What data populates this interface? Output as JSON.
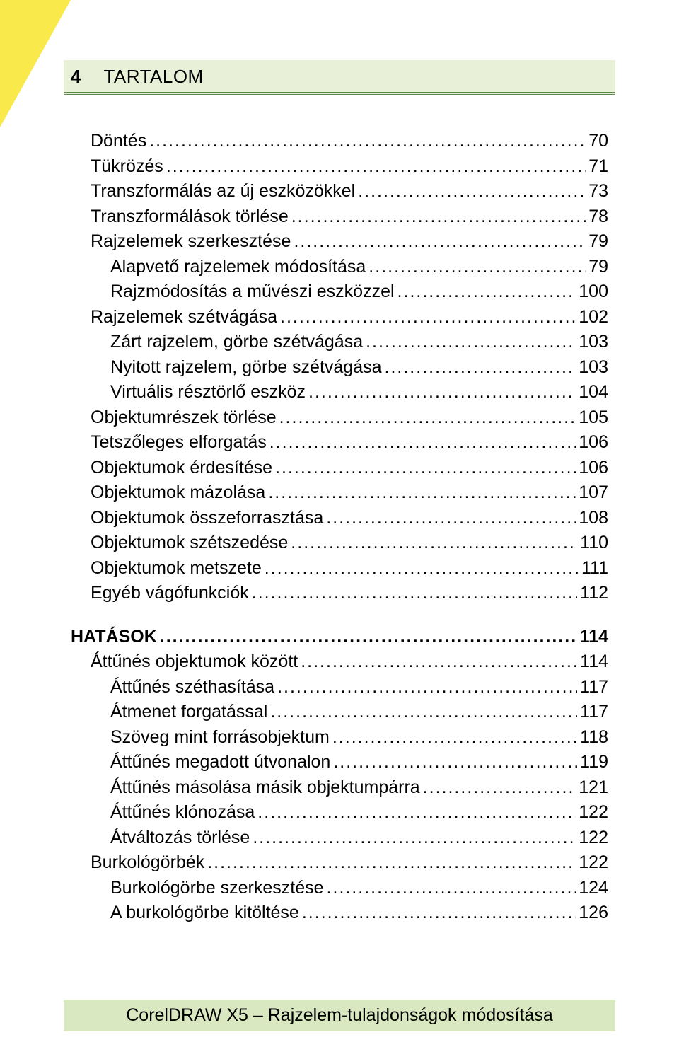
{
  "header": {
    "page_number": "4",
    "title": "TARTALOM"
  },
  "colors": {
    "accent_green": "#5a8a4a",
    "header_bg": "#e8f0d8",
    "footer_bg": "#d9e8c0",
    "corner_yellow": "#f9e94a",
    "text": "#000000"
  },
  "toc": [
    {
      "level": 1,
      "label": "Döntés",
      "page": "70"
    },
    {
      "level": 1,
      "label": "Tükrözés",
      "page": "71"
    },
    {
      "level": 1,
      "label": "Transzformálás az új eszközökkel",
      "page": "73"
    },
    {
      "level": 1,
      "label": "Transzformálások törlése",
      "page": "78"
    },
    {
      "level": 1,
      "label": "Rajzelemek szerkesztése",
      "page": "79"
    },
    {
      "level": 2,
      "label": "Alapvető rajzelemek módosítása",
      "page": "79"
    },
    {
      "level": 2,
      "label": "Rajzmódosítás a művészi eszközzel",
      "page": "100"
    },
    {
      "level": 1,
      "label": "Rajzelemek szétvágása",
      "page": "102"
    },
    {
      "level": 2,
      "label": "Zárt rajzelem, görbe szétvágása",
      "page": "103"
    },
    {
      "level": 2,
      "label": "Nyitott rajzelem, görbe szétvágása",
      "page": "103"
    },
    {
      "level": 2,
      "label": "Virtuális résztörlő eszköz",
      "page": "104"
    },
    {
      "level": 1,
      "label": "Objektumrészek törlése",
      "page": "105"
    },
    {
      "level": 1,
      "label": "Tetszőleges elforgatás",
      "page": "106"
    },
    {
      "level": 1,
      "label": "Objektumok érdesítése",
      "page": "106"
    },
    {
      "level": 1,
      "label": "Objektumok mázolása",
      "page": "107"
    },
    {
      "level": 1,
      "label": "Objektumok összeforrasztása",
      "page": "108"
    },
    {
      "level": 1,
      "label": "Objektumok szétszedése",
      "page": "110"
    },
    {
      "level": 1,
      "label": "Objektumok metszete",
      "page": "111"
    },
    {
      "level": 1,
      "label": "Egyéb vágófunkciók",
      "page": "112"
    },
    {
      "level": 0,
      "label": "HATÁSOK",
      "page": "114",
      "section": true
    },
    {
      "level": 1,
      "label": "Áttűnés objektumok között",
      "page": "114"
    },
    {
      "level": 2,
      "label": "Áttűnés széthasítása",
      "page": "117"
    },
    {
      "level": 2,
      "label": "Átmenet forgatással",
      "page": "117"
    },
    {
      "level": 2,
      "label": "Szöveg mint forrásobjektum",
      "page": "118"
    },
    {
      "level": 2,
      "label": "Áttűnés megadott útvonalon",
      "page": "119"
    },
    {
      "level": 2,
      "label": "Áttűnés másolása másik objektumpárra",
      "page": "121"
    },
    {
      "level": 2,
      "label": "Áttűnés klónozása",
      "page": "122"
    },
    {
      "level": 2,
      "label": "Átváltozás törlése",
      "page": "122"
    },
    {
      "level": 1,
      "label": "Burkológörbék",
      "page": "122"
    },
    {
      "level": 2,
      "label": "Burkológörbe szerkesztése",
      "page": "124"
    },
    {
      "level": 2,
      "label": "A burkológörbe kitöltése",
      "page": "126"
    }
  ],
  "footer": {
    "text": "CorelDRAW X5 – Rajzelem-tulajdonságok módosítása"
  }
}
